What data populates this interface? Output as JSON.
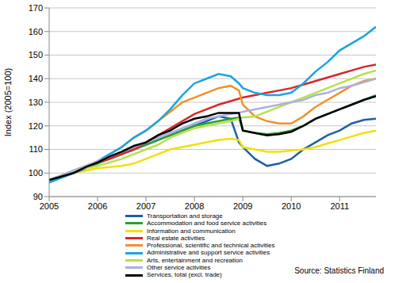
{
  "chart_data": {
    "type": "line",
    "y_label": "Index (2005=100)",
    "annotation": "Source: Statistics Finland",
    "x": [
      2005,
      2005.25,
      2005.5,
      2005.75,
      2006,
      2006.25,
      2006.5,
      2006.75,
      2007,
      2007.25,
      2007.5,
      2007.75,
      2008,
      2008.25,
      2008.5,
      2008.75,
      2008.92,
      2009,
      2009.25,
      2009.5,
      2009.75,
      2010,
      2010.25,
      2010.5,
      2010.75,
      2011,
      2011.25,
      2011.5,
      2011.75
    ],
    "xlim": [
      2005,
      2011.75
    ],
    "xticks": [
      2005,
      2006,
      2007,
      2008,
      2009,
      2010,
      2011
    ],
    "ylim": [
      90,
      170
    ],
    "yticks": [
      90,
      100,
      110,
      120,
      130,
      140,
      150,
      160,
      170
    ],
    "grid": true,
    "legend": "bottom",
    "series": [
      {
        "name": "Transportation and storage",
        "color": "#1f5fa8",
        "values": [
          96,
          98,
          100,
          102,
          104.5,
          106,
          108,
          110,
          112,
          114,
          116,
          118,
          120,
          122,
          124,
          123,
          113,
          111,
          106,
          103,
          104,
          106,
          110,
          113,
          116,
          118,
          121,
          122.5,
          123
        ]
      },
      {
        "name": "Accommodation and food service activities",
        "color": "#2a9d3a",
        "values": [
          97,
          98.5,
          100,
          102,
          104,
          106,
          108,
          110,
          112,
          114,
          116,
          118,
          120,
          121,
          122,
          123,
          123.5,
          118,
          117,
          116.5,
          117,
          118,
          120,
          123,
          125,
          127,
          129,
          131,
          133
        ]
      },
      {
        "name": "Information and communication",
        "color": "#f2e00c",
        "values": [
          97,
          98.5,
          100,
          101,
          102,
          102.5,
          103,
          104,
          106,
          108,
          110,
          111,
          112,
          113,
          114,
          114.5,
          114,
          111,
          110,
          109,
          109,
          109.5,
          110,
          111,
          112.5,
          114,
          115.5,
          117,
          118
        ]
      },
      {
        "name": "Real estate activities",
        "color": "#d9262a",
        "values": [
          97,
          98.5,
          100,
          102,
          104.5,
          106,
          108,
          110,
          113,
          116,
          119,
          122,
          125,
          127,
          129,
          130.5,
          131.5,
          132,
          133,
          134,
          135,
          136,
          137.5,
          139,
          140.5,
          142,
          143.5,
          145,
          146
        ]
      },
      {
        "name": "Professional, scientific and technical activities",
        "color": "#f0922a",
        "values": [
          97,
          99,
          101,
          103,
          105,
          108,
          111,
          115,
          118,
          122,
          126,
          130,
          132,
          134,
          136,
          137,
          135,
          129,
          124,
          122,
          121,
          121,
          124,
          128,
          131,
          134,
          137,
          139,
          140
        ]
      },
      {
        "name": "Administrative and support service activities",
        "color": "#1aa4e0",
        "values": [
          96,
          98,
          100,
          102,
          105,
          108,
          111,
          115,
          118,
          122,
          127,
          133,
          138,
          140,
          142,
          141,
          138,
          136,
          134,
          133,
          133,
          134,
          138,
          143,
          147,
          152,
          155,
          158,
          162
        ]
      },
      {
        "name": "Arts, entertainment and recreation",
        "color": "#b8e04a",
        "values": [
          97,
          99,
          101,
          102,
          103,
          104.5,
          106,
          108,
          110,
          112,
          115,
          117,
          119,
          120,
          121,
          122,
          123,
          123.5,
          124,
          126,
          128,
          130,
          132,
          134,
          136,
          138,
          140,
          142,
          143.5
        ]
      },
      {
        "name": "Other service activities",
        "color": "#a9b3dc",
        "values": [
          97,
          99,
          101,
          103,
          105,
          107,
          109,
          111,
          113,
          115,
          117,
          119,
          121,
          123,
          124,
          125,
          125.5,
          126,
          127,
          128,
          129,
          130,
          131,
          133,
          134,
          136,
          137,
          138.5,
          140
        ]
      },
      {
        "name": "Services, total (excl. trade)",
        "color": "#000000",
        "values": [
          97,
          98.5,
          100,
          102.5,
          104.5,
          107,
          109,
          111.5,
          113,
          116,
          118,
          121,
          123,
          124,
          125.5,
          125.5,
          125.5,
          118,
          117,
          116,
          116.5,
          117.5,
          120,
          123,
          125,
          127,
          129,
          131,
          132.5
        ]
      }
    ]
  }
}
